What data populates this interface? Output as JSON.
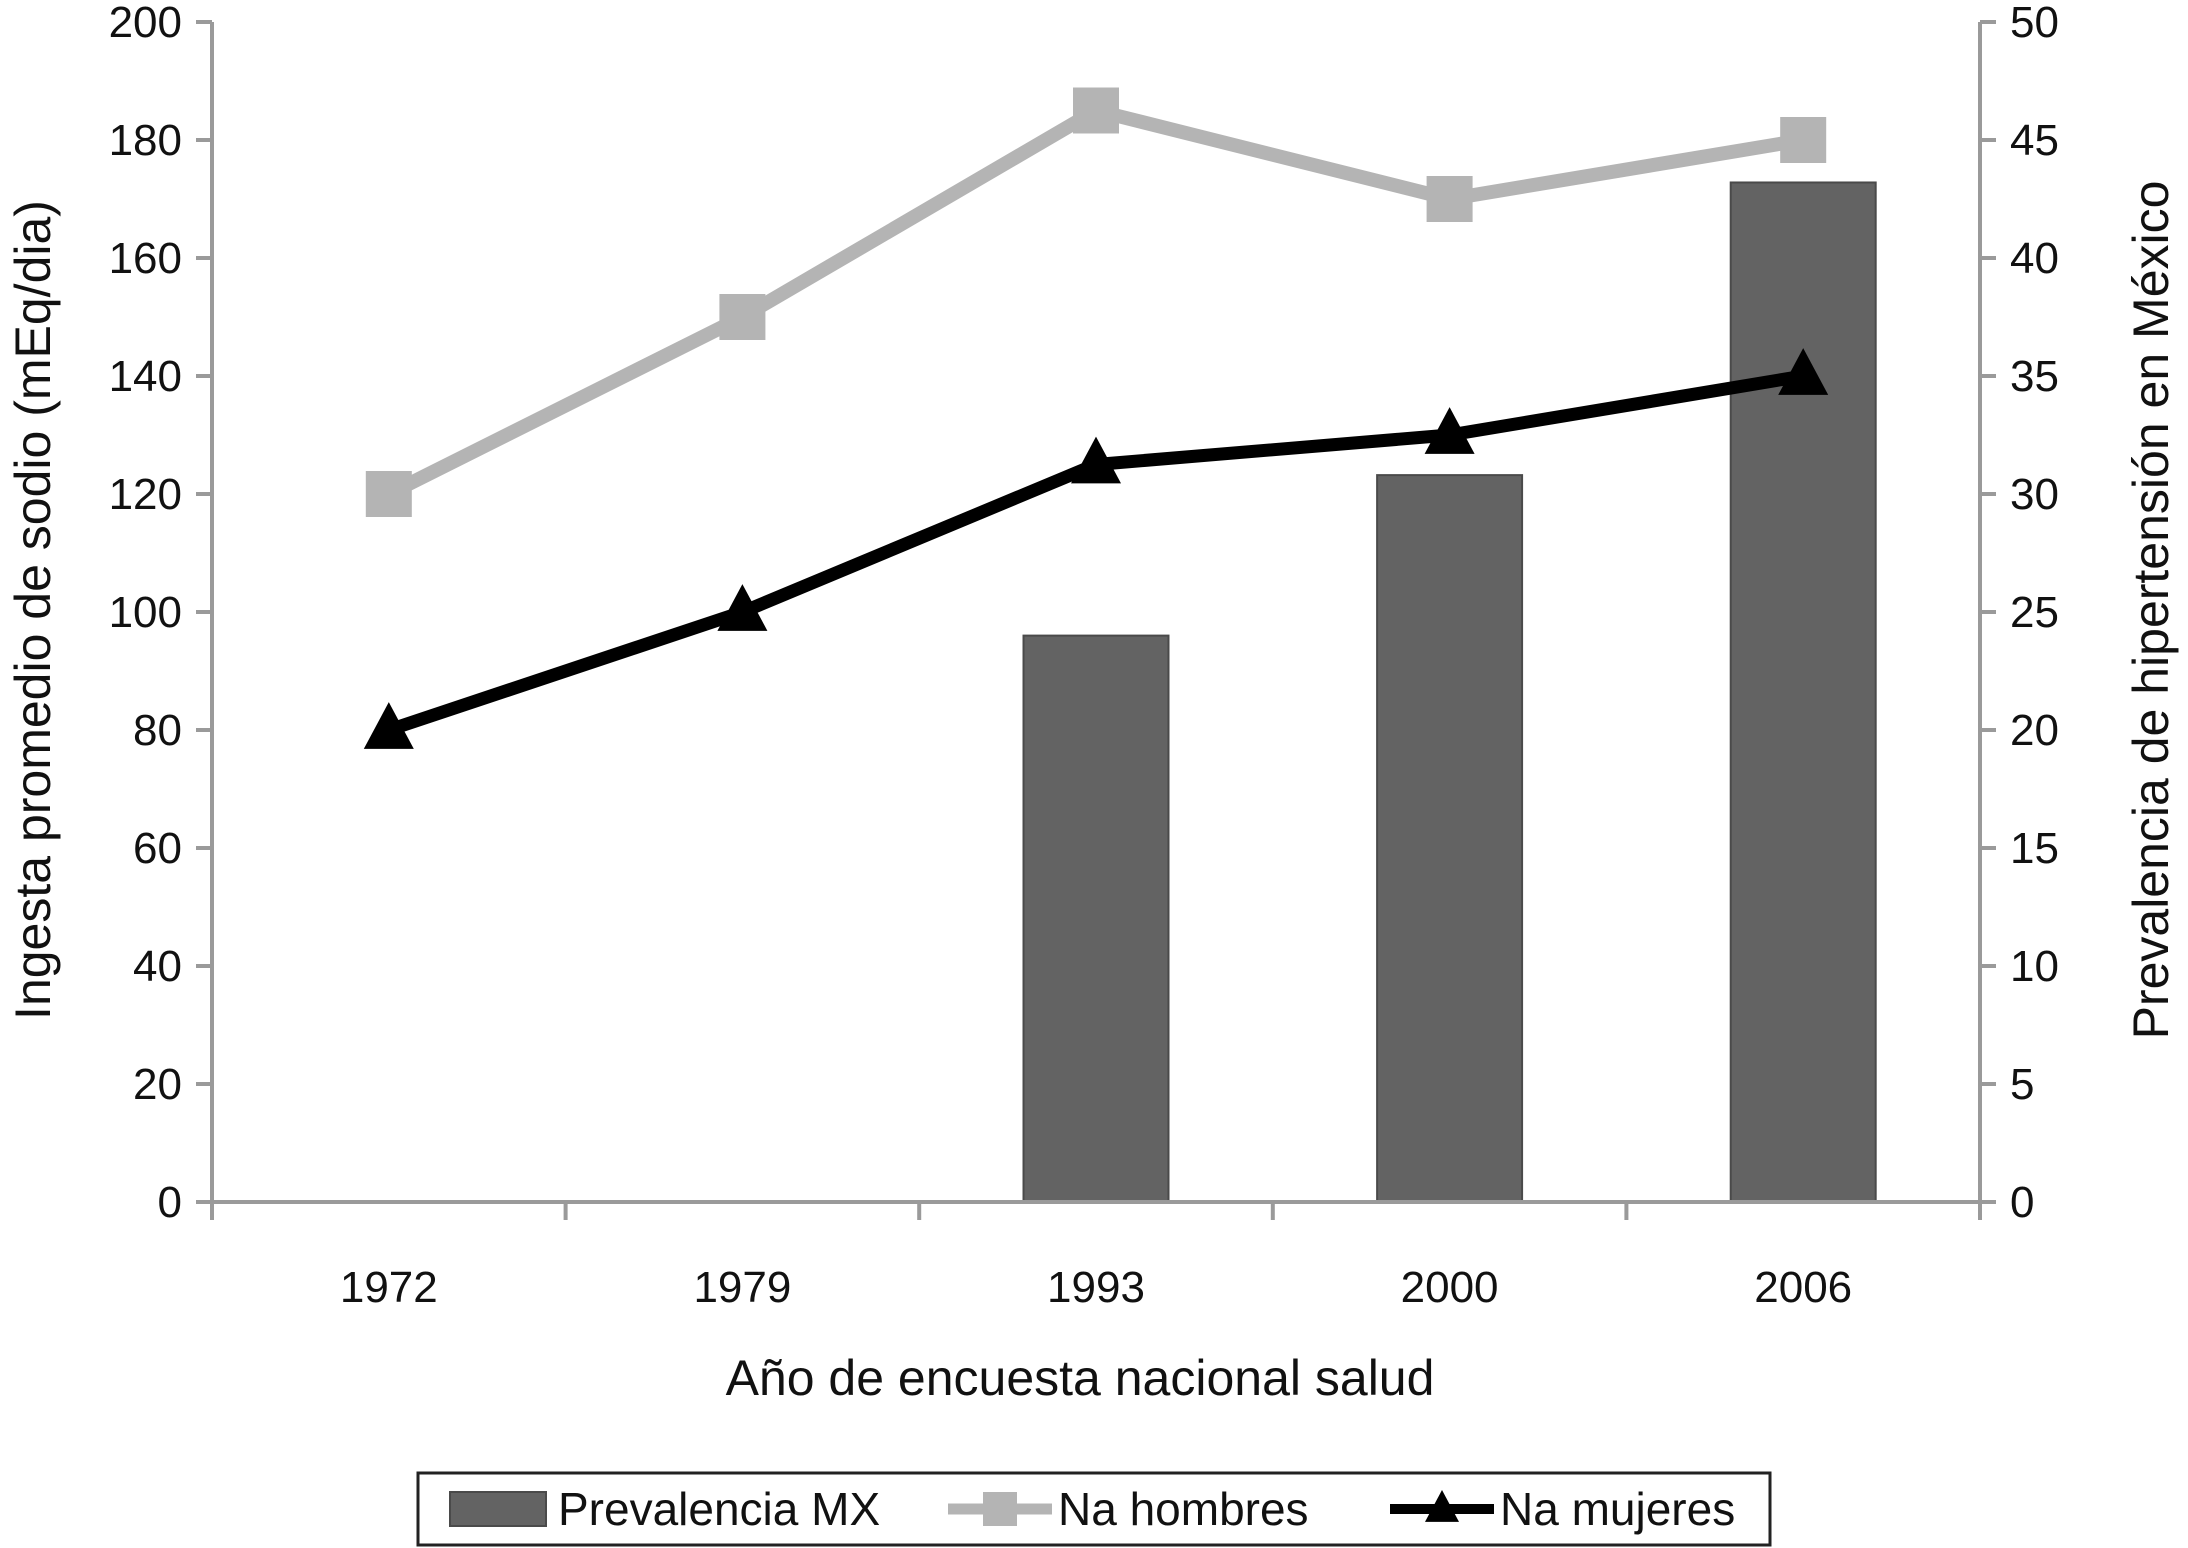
{
  "chart_data": {
    "type": "bar",
    "xlabel": "Año de encuesta nacional salud",
    "ylabel": "Ingesta promedio de sodio (mEq/dia)",
    "y2label": "Prevalencia de hipertensión en México",
    "categories": [
      "1972",
      "1979",
      "1993",
      "2000",
      "2006"
    ],
    "ylim": [
      0,
      200
    ],
    "yticks": [
      0,
      20,
      40,
      60,
      80,
      100,
      120,
      140,
      160,
      180,
      200
    ],
    "y2lim": [
      0,
      50
    ],
    "y2ticks": [
      0,
      5,
      10,
      15,
      20,
      25,
      30,
      35,
      40,
      45,
      50
    ],
    "legend_position": "bottom",
    "grid": false,
    "series": [
      {
        "name": "Prevalencia MX",
        "kind": "bar",
        "axis": "right",
        "color": "#636363",
        "values": [
          null,
          null,
          24,
          30.8,
          43.2
        ]
      },
      {
        "name": "Na hombres",
        "kind": "line",
        "marker": "square",
        "axis": "left",
        "color": "#b4b4b4",
        "values": [
          120,
          150,
          185,
          170,
          180
        ]
      },
      {
        "name": "Na mujeres",
        "kind": "line",
        "marker": "triangle",
        "axis": "left",
        "color": "#000000",
        "values": [
          80,
          100,
          125,
          130,
          140
        ]
      }
    ]
  }
}
